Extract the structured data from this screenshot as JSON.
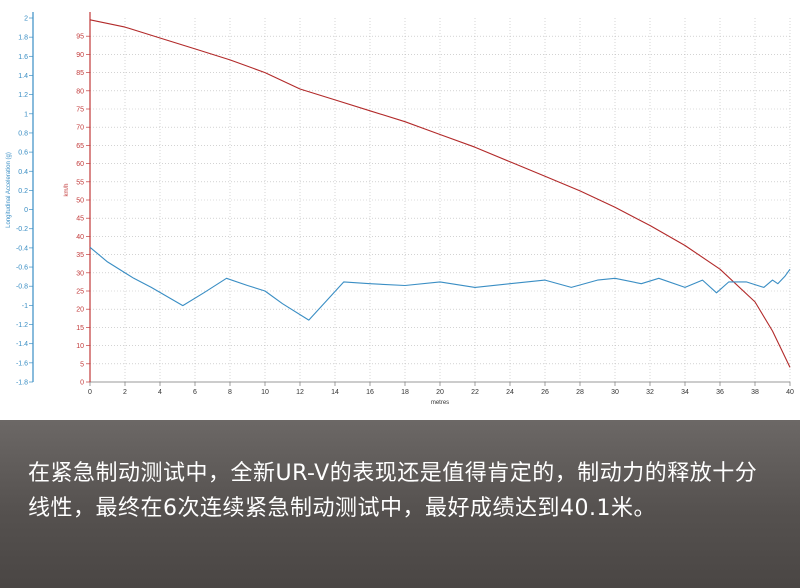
{
  "chart_data": {
    "type": "line",
    "xlabel": "metres",
    "y_left_label": "Longitudinal Acceleration (g)",
    "y_right_label": "km/h",
    "xlim": [
      0,
      40
    ],
    "y_left_lim": [
      -1.8,
      2
    ],
    "y_right_lim": [
      0,
      100
    ],
    "x_ticks": [
      0,
      2,
      4,
      6,
      8,
      10,
      12,
      14,
      16,
      18,
      20,
      22,
      24,
      26,
      28,
      30,
      32,
      34,
      36,
      38,
      40
    ],
    "y_left_ticks": [
      "2",
      "1.8",
      "1.6",
      "1.4",
      "1.2",
      "1",
      "0.8",
      "0.6",
      "0.4",
      "0.2",
      "0",
      "-0.2",
      "-0.4",
      "-0.6",
      "-0.8",
      "-1",
      "-1.2",
      "-1.4",
      "-1.6",
      "-1.8"
    ],
    "y_right_ticks": [
      95,
      90,
      85,
      80,
      75,
      70,
      65,
      60,
      55,
      50,
      45,
      40,
      35,
      30,
      25,
      20,
      15,
      10,
      5,
      0
    ],
    "grid": true,
    "series": [
      {
        "axis": "right",
        "color": "#b22a2a",
        "points": [
          [
            0,
            99.5
          ],
          [
            2,
            97.5
          ],
          [
            4,
            94.5
          ],
          [
            6,
            91.5
          ],
          [
            8,
            88.5
          ],
          [
            10,
            85
          ],
          [
            12,
            80.5
          ],
          [
            14,
            77.5
          ],
          [
            16,
            74.5
          ],
          [
            18,
            71.5
          ],
          [
            20,
            68
          ],
          [
            22,
            64.5
          ],
          [
            24,
            60.5
          ],
          [
            26,
            56.5
          ],
          [
            28,
            52.5
          ],
          [
            30,
            48
          ],
          [
            32,
            43
          ],
          [
            34,
            37.5
          ],
          [
            36,
            31
          ],
          [
            38,
            22
          ],
          [
            39,
            14
          ],
          [
            39.5,
            9
          ],
          [
            40,
            4
          ]
        ]
      },
      {
        "axis": "right",
        "color": "#3a8ec4",
        "points": [
          [
            0,
            37
          ],
          [
            1,
            33
          ],
          [
            2.5,
            28.5
          ],
          [
            3.5,
            26
          ],
          [
            5.3,
            21
          ],
          [
            6.5,
            24.5
          ],
          [
            7.8,
            28.5
          ],
          [
            9,
            26.5
          ],
          [
            10,
            25
          ],
          [
            11,
            21.5
          ],
          [
            12.5,
            17
          ],
          [
            14.5,
            27.5
          ],
          [
            16,
            27
          ],
          [
            18,
            26.5
          ],
          [
            20,
            27.5
          ],
          [
            22,
            26
          ],
          [
            24,
            27
          ],
          [
            26,
            28
          ],
          [
            27.5,
            26
          ],
          [
            29,
            28
          ],
          [
            30,
            28.5
          ],
          [
            31.5,
            27
          ],
          [
            32.5,
            28.5
          ],
          [
            34,
            26
          ],
          [
            35,
            28
          ],
          [
            35.8,
            24.5
          ],
          [
            36.5,
            27.5
          ],
          [
            37.5,
            27.5
          ],
          [
            38.5,
            26
          ],
          [
            39,
            28
          ],
          [
            39.3,
            27
          ],
          [
            39.7,
            29
          ],
          [
            40,
            31
          ]
        ]
      }
    ]
  },
  "caption": {
    "text": "在紧急制动测试中，全新UR-V的表现还是值得肯定的，制动力的释放十分线性，最终在6次连续紧急制动测试中，最好成绩达到40.1米。"
  }
}
